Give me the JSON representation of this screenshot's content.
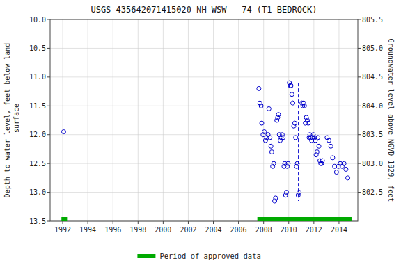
{
  "chart_data": {
    "type": "scatter",
    "title": "USGS 435642071415020 NH-WSW   74 (T1-BEDROCK)",
    "y_label": "Depth to water level, feet below land\n surface",
    "y2_label": "Groundwater level above NGVD 1929, feet",
    "xlim": [
      1991.0,
      2015.5
    ],
    "xticks": [
      1992,
      1994,
      1996,
      1998,
      2000,
      2002,
      2004,
      2006,
      2008,
      2010,
      2012,
      2014
    ],
    "ylim": [
      13.5,
      10.0
    ],
    "yticks": [
      {
        "value": 10.0,
        "label": "10.0"
      },
      10.5,
      {
        "value": 11.0,
        "label": "11.0"
      },
      11.5,
      {
        "value": 12.0,
        "label": "12.0"
      },
      12.5,
      {
        "value": 13.0,
        "label": "13.0"
      },
      13.5
    ],
    "y2lim": [
      802.0,
      805.5
    ],
    "y2ticks": [
      802.5,
      {
        "value": 803.0,
        "label": "803.0"
      },
      803.5,
      {
        "value": 804.0,
        "label": "804.0"
      },
      804.5,
      {
        "value": 805.0,
        "label": "805.0"
      },
      805.5
    ],
    "grid": true,
    "legend": "bottom",
    "series": [
      {
        "type": "line",
        "line_style": "dashed",
        "color": "#0000cc",
        "x": [
          2010.768227848101,
          2010.768227848101
        ],
        "values": [
          11.1,
          13.15
        ]
      },
      {
        "type": "scatter",
        "marker": "circle",
        "color": "#0000cc",
        "x": [
          1992.08,
          2007.62,
          2007.7,
          2007.8,
          2007.85,
          2007.95,
          2008.05,
          2008.15,
          2008.25,
          2008.35,
          2008.42,
          2008.5,
          2008.58,
          2008.65,
          2008.72,
          2008.8,
          2008.88,
          2008.95,
          2009.05,
          2009.12,
          2009.18,
          2009.25,
          2009.32,
          2009.4,
          2009.48,
          2009.55,
          2009.62,
          2009.68,
          2009.75,
          2009.82,
          2009.88,
          2009.95,
          2010.05,
          2010.12,
          2010.18,
          2010.25,
          2010.32,
          2010.4,
          2010.48,
          2010.55,
          2010.62,
          2010.68,
          2010.75,
          2010.82,
          2011.05,
          2011.12,
          2011.18,
          2011.25,
          2011.32,
          2011.4,
          2011.48,
          2011.55,
          2011.62,
          2011.68,
          2011.75,
          2011.82,
          2011.88,
          2011.95,
          2012.05,
          2012.12,
          2012.18,
          2012.25,
          2012.32,
          2012.4,
          2012.48,
          2012.55,
          2012.62,
          2012.68,
          2013.05,
          2013.2,
          2013.35,
          2013.5,
          2013.65,
          2013.8,
          2013.95,
          2014.1,
          2014.25,
          2014.4,
          2014.55,
          2014.7
        ],
        "values": [
          11.95,
          11.2,
          11.45,
          11.5,
          11.8,
          12.0,
          11.95,
          12.1,
          12.05,
          12.0,
          11.55,
          12.05,
          12.2,
          12.3,
          12.55,
          12.5,
          13.15,
          13.1,
          11.75,
          11.7,
          11.65,
          12.0,
          12.1,
          12.05,
          12.0,
          12.05,
          12.55,
          12.5,
          13.05,
          13.0,
          12.55,
          12.5,
          11.1,
          11.15,
          11.15,
          11.3,
          11.45,
          11.85,
          11.8,
          12.05,
          12.55,
          12.5,
          13.05,
          13.0,
          11.45,
          11.5,
          11.45,
          11.5,
          11.8,
          11.7,
          11.75,
          11.8,
          12.05,
          12.0,
          12.05,
          12.1,
          12.05,
          12.0,
          12.05,
          12.1,
          12.35,
          12.3,
          12.05,
          12.2,
          12.45,
          12.5,
          12.5,
          12.45,
          12.05,
          12.1,
          12.2,
          12.4,
          12.55,
          12.65,
          12.55,
          12.5,
          12.55,
          12.5,
          12.6,
          12.75
        ]
      },
      {
        "name": "Period of approved data",
        "type": "span",
        "color": "#00aa00",
        "values": [
          [
            1991.9,
            1992.35
          ],
          [
            2007.5,
            2015.0
          ]
        ]
      }
    ]
  }
}
